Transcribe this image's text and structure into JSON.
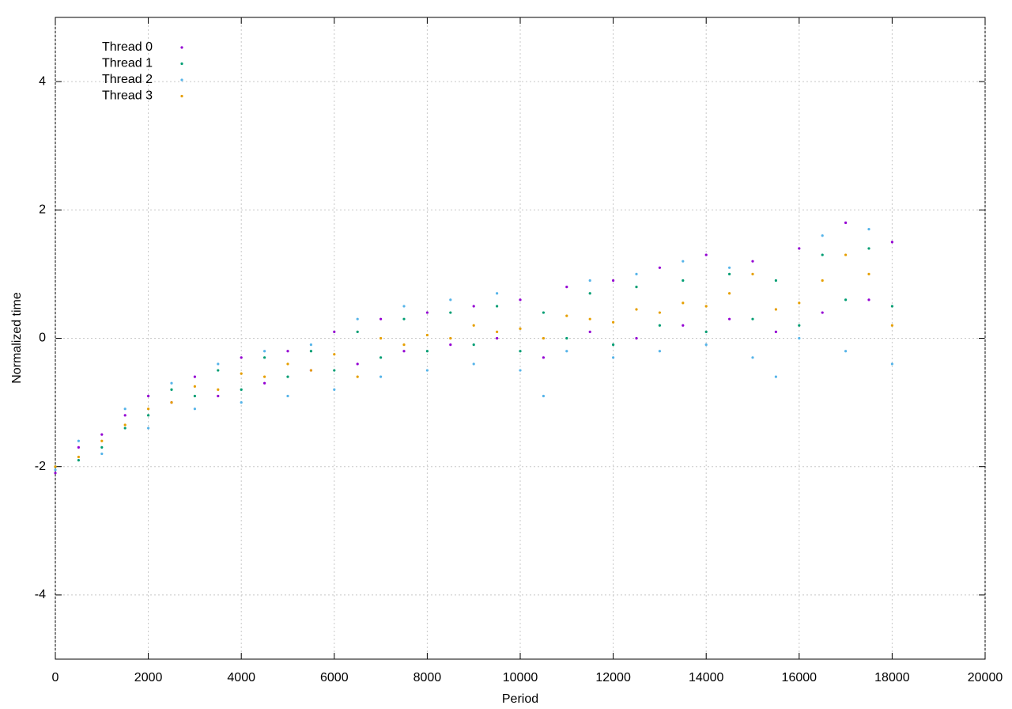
{
  "chart_data": {
    "type": "scatter",
    "x_label": "Period",
    "y_label": "Normalized time",
    "xlim": [
      0,
      20000
    ],
    "ylim": [
      -5,
      5
    ],
    "xticks": [
      0,
      2000,
      4000,
      6000,
      8000,
      10000,
      12000,
      14000,
      16000,
      18000,
      20000
    ],
    "yticks": [
      -4,
      -2,
      0,
      2,
      4
    ],
    "grid": true,
    "legend": "top-left",
    "x": [
      0,
      500,
      1000,
      1500,
      2000,
      2500,
      3000,
      3500,
      4000,
      4500,
      5000,
      5500,
      6000,
      6500,
      7000,
      7500,
      8000,
      8500,
      9000,
      9500,
      10000,
      10500,
      11000,
      11500,
      12000,
      12500,
      13000,
      13500,
      14000,
      14500,
      15000,
      15500,
      16000,
      16500,
      17000,
      17500,
      18000
    ],
    "series": [
      {
        "name": "Thread 0",
        "color": "#9400d3",
        "values": [
          -2.1,
          -1.7,
          -1.5,
          -1.2,
          -0.9,
          -1.0,
          -0.6,
          -0.9,
          -0.3,
          -0.7,
          -0.2,
          -0.5,
          0.1,
          -0.4,
          0.3,
          -0.2,
          0.4,
          -0.1,
          0.5,
          0.0,
          0.6,
          -0.3,
          0.8,
          0.1,
          0.9,
          0.0,
          1.1,
          0.2,
          1.3,
          0.3,
          1.2,
          0.1,
          1.4,
          0.4,
          1.8,
          0.6,
          1.5
        ]
      },
      {
        "name": "Thread 1",
        "color": "#009e73",
        "values": [
          -2.0,
          -1.9,
          -1.7,
          -1.4,
          -1.2,
          -0.8,
          -0.9,
          -0.5,
          -0.8,
          -0.3,
          -0.6,
          -0.2,
          -0.5,
          0.1,
          -0.3,
          0.3,
          -0.2,
          0.4,
          -0.1,
          0.5,
          -0.2,
          0.4,
          0.0,
          0.7,
          -0.1,
          0.8,
          0.2,
          0.9,
          0.1,
          1.0,
          0.3,
          0.9,
          0.2,
          1.3,
          0.6,
          1.4,
          0.5
        ]
      },
      {
        "name": "Thread 2",
        "color": "#56b4e9",
        "values": [
          -2.05,
          -1.6,
          -1.8,
          -1.1,
          -1.4,
          -0.7,
          -1.1,
          -0.4,
          -1.0,
          -0.2,
          -0.9,
          -0.1,
          -0.8,
          0.3,
          -0.6,
          0.5,
          -0.5,
          0.6,
          -0.4,
          0.7,
          -0.5,
          -0.9,
          -0.2,
          0.9,
          -0.3,
          1.0,
          -0.2,
          1.2,
          -0.1,
          1.1,
          -0.3,
          -0.6,
          0.0,
          1.6,
          -0.2,
          1.7,
          -0.4
        ]
      },
      {
        "name": "Thread 3",
        "color": "#e69f00",
        "values": [
          -2.0,
          -1.85,
          -1.6,
          -1.35,
          -1.1,
          -1.0,
          -0.75,
          -0.8,
          -0.55,
          -0.6,
          -0.4,
          -0.5,
          -0.25,
          -0.6,
          0.0,
          -0.1,
          0.05,
          0.0,
          0.2,
          0.1,
          0.15,
          0.0,
          0.35,
          0.3,
          0.25,
          0.45,
          0.4,
          0.55,
          0.5,
          0.7,
          1.0,
          0.45,
          0.55,
          0.9,
          1.3,
          1.0,
          0.2
        ]
      }
    ]
  }
}
